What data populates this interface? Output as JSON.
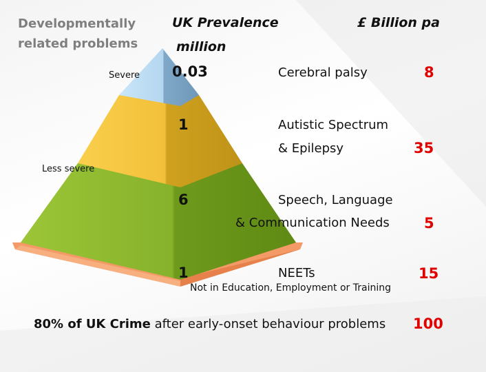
{
  "headers": {
    "problems_line1": "Developmentally",
    "problems_line2": "related problems",
    "prevalence_line1": "UK Prevalence",
    "prevalence_line2": "million",
    "cost": "£ Billion pa"
  },
  "severity": {
    "severe": "Severe",
    "less_severe": "Less severe"
  },
  "tiers": [
    {
      "prevalence": "0.03",
      "label": "Cerebral palsy",
      "cost": "8",
      "color": "#b9dcf3"
    },
    {
      "prevalence": "1",
      "label_line1": "Autistic Spectrum",
      "label_line2": "& Epilepsy",
      "cost": "35",
      "color": "#f6c542"
    },
    {
      "prevalence": "6",
      "label_line1": "Speech, Language",
      "label_line2": "& Communication Needs",
      "cost": "5",
      "color": "#8cb92f"
    },
    {
      "prevalence": "1",
      "label": "NEETs",
      "sublabel": "Not in Education, Employment or Training",
      "cost": "15",
      "color": "#f59a6a"
    }
  ],
  "footer": {
    "bold": "80% of UK Crime",
    "rest": " after early-onset behaviour problems",
    "cost": "100"
  }
}
